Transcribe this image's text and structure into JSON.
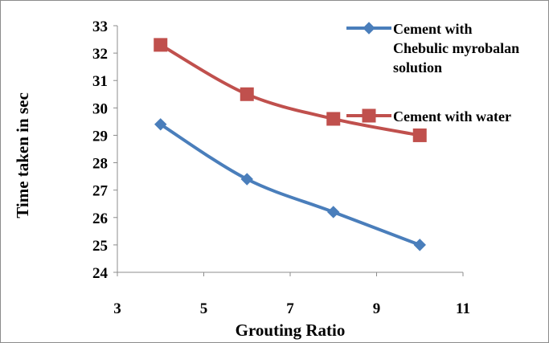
{
  "chart_data": {
    "type": "line",
    "title": "",
    "xlabel": "Grouting Ratio",
    "ylabel": "Time taken in sec",
    "xlim": [
      3,
      11
    ],
    "ylim": [
      24,
      33
    ],
    "x_ticks": [
      3,
      5,
      7,
      9,
      11
    ],
    "y_ticks": [
      24,
      25,
      26,
      27,
      28,
      29,
      30,
      31,
      32,
      33
    ],
    "grid": false,
    "legend_position": "top-right",
    "series": [
      {
        "name": "Cement with Chebulic myrobalan solution",
        "legend_lines": [
          "Cement with",
          "Chebulic myrobalan",
          "solution"
        ],
        "marker": "diamond",
        "color": "#4a7ebb",
        "x": [
          4,
          6,
          8,
          10
        ],
        "y": [
          29.4,
          27.4,
          26.2,
          25.0
        ]
      },
      {
        "name": "Cement with water",
        "legend_lines": [
          "Cement with water"
        ],
        "marker": "square",
        "color": "#c0504d",
        "x": [
          4,
          6,
          8,
          10
        ],
        "y": [
          32.3,
          30.5,
          29.6,
          29.0
        ]
      }
    ]
  }
}
